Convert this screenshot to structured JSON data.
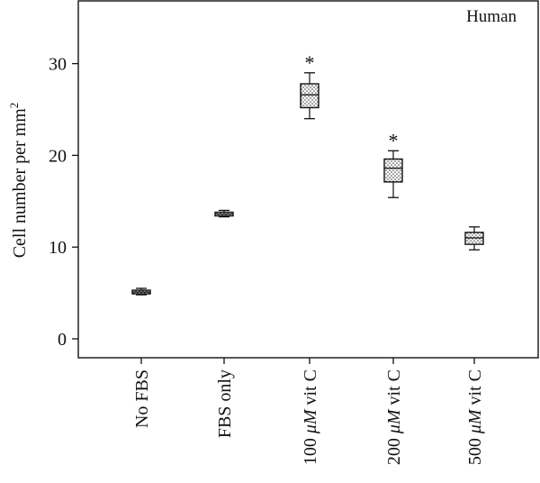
{
  "chart_data": {
    "type": "box",
    "annotation": "Human",
    "ylabel": "Cell number per mm",
    "ylabel_sup": "2",
    "ylim": [
      -2,
      36
    ],
    "yticks": [
      0,
      10,
      20,
      30
    ],
    "categories": [
      {
        "label": "No FBS",
        "label_parts": [
          "No FBS"
        ]
      },
      {
        "label": "FBS only",
        "label_parts": [
          "FBS only"
        ]
      },
      {
        "label": "100 μM vit C",
        "label_parts": [
          "100 ",
          "μM",
          " vit C"
        ]
      },
      {
        "label": "200 μM vit C",
        "label_parts": [
          "200 ",
          "μM",
          " vit C"
        ]
      },
      {
        "label": "500 μM vit C",
        "label_parts": [
          "500 ",
          "μM",
          " vit C"
        ]
      }
    ],
    "boxes": [
      {
        "min": 4.8,
        "q1": 4.9,
        "median": 5.1,
        "q3": 5.3,
        "max": 5.5,
        "significant": false
      },
      {
        "min": 13.3,
        "q1": 13.4,
        "median": 13.6,
        "q3": 13.8,
        "max": 14.0,
        "significant": false
      },
      {
        "min": 24.0,
        "q1": 25.2,
        "median": 26.6,
        "q3": 27.8,
        "max": 29.0,
        "significant": true
      },
      {
        "min": 15.4,
        "q1": 17.1,
        "median": 18.6,
        "q3": 19.6,
        "max": 20.5,
        "significant": true
      },
      {
        "min": 9.7,
        "q1": 10.3,
        "median": 11.0,
        "q3": 11.6,
        "max": 12.2,
        "significant": false
      }
    ],
    "significance_marker": "*"
  }
}
